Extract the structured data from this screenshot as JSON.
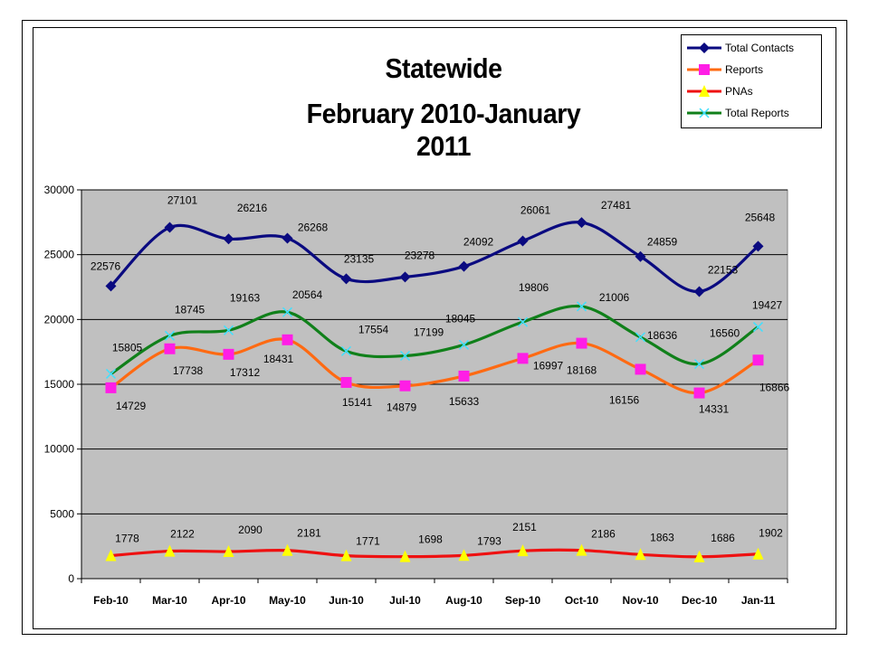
{
  "chart_data": {
    "type": "line",
    "title": [
      "Statewide",
      "February 2010-January 2011"
    ],
    "categories": [
      "Feb-10",
      "Mar-10",
      "Apr-10",
      "May-10",
      "Jun-10",
      "Jul-10",
      "Aug-10",
      "Sep-10",
      "Oct-10",
      "Nov-10",
      "Dec-10",
      "Jan-11"
    ],
    "ylim": [
      0,
      30000
    ],
    "yticks": [
      "0",
      "5000",
      "10000",
      "15000",
      "20000",
      "25000",
      "30000"
    ],
    "grid": true,
    "legend_position": "top-right",
    "series": [
      {
        "name": "Total Contacts",
        "color": "#0a0a80",
        "marker": "diamond",
        "marker_color": "#0a0a80",
        "values": [
          22576,
          27101,
          26216,
          26268,
          23135,
          23278,
          24092,
          26061,
          27481,
          24859,
          22153,
          25648
        ]
      },
      {
        "name": "Reports",
        "color": "#ff6a12",
        "marker": "square",
        "marker_color": "#ff1ee6",
        "values": [
          14729,
          17738,
          17312,
          18431,
          15141,
          14879,
          15633,
          16997,
          18168,
          16156,
          14331,
          16866
        ]
      },
      {
        "name": "PNAs",
        "color": "#ee1111",
        "marker": "triangle",
        "marker_color": "#ffff00",
        "values": [
          1778,
          2122,
          2090,
          2181,
          1771,
          1698,
          1793,
          2151,
          2186,
          1863,
          1686,
          1902
        ]
      },
      {
        "name": "Total Reports",
        "color": "#10801a",
        "marker": "x",
        "marker_color": "#40e0ff",
        "values": [
          15805,
          18745,
          19163,
          20564,
          17554,
          17199,
          18045,
          19806,
          21006,
          18636,
          16560,
          19427
        ]
      }
    ]
  }
}
